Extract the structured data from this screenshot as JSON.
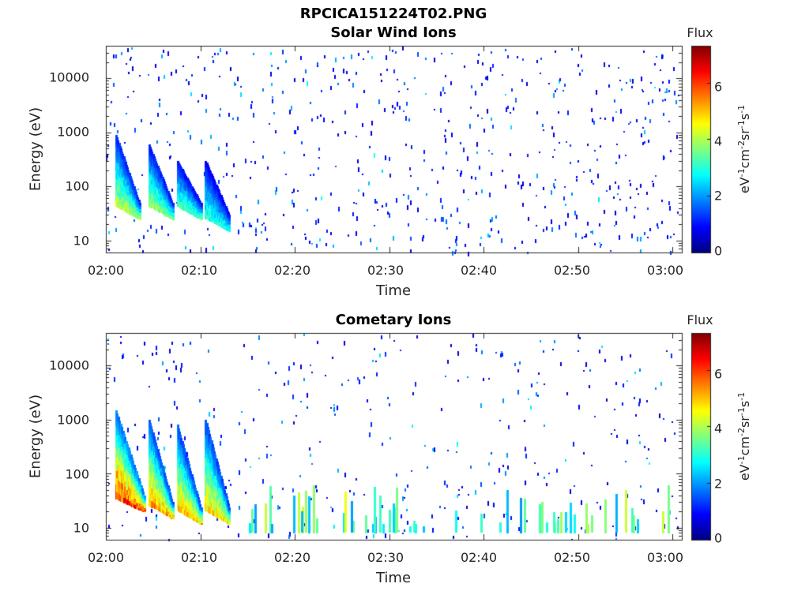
{
  "figure_title": "RPCICA151224T02.PNG",
  "colorbar": {
    "title": "Flux",
    "label_html": "eV<sup>-1</sup>cm<sup>-2</sup>sr<sup>-1</sup>s<sup>-1</sup>",
    "colormap": "jet"
  },
  "chart_data": [
    {
      "type": "heatmap",
      "title": "Solar Wind Ions",
      "xlabel": "Time",
      "ylabel": "Energy (eV)",
      "x_ticks": [
        "02:00",
        "02:10",
        "02:20",
        "02:30",
        "02:40",
        "02:50",
        "03:00"
      ],
      "xlim": [
        "02:00",
        "03:01"
      ],
      "y_ticks": [
        "10",
        "100",
        "1000",
        "10000"
      ],
      "yscale": "log",
      "ylim": [
        6,
        40000
      ],
      "clim": [
        0,
        7.3
      ],
      "colorbar_ticks": [
        "0",
        "2",
        "4",
        "6"
      ],
      "features": [
        {
          "start_min": 1.0,
          "end_min": 3.5,
          "energy_range_eV": [
            25,
            900
          ],
          "peak_flux": 4.6
        },
        {
          "start_min": 4.5,
          "end_min": 7.0,
          "energy_range_eV": [
            25,
            600
          ],
          "peak_flux": 4.3
        },
        {
          "start_min": 7.5,
          "end_min": 10.0,
          "energy_range_eV": [
            25,
            300
          ],
          "peak_flux": 3.8
        },
        {
          "start_min": 10.5,
          "end_min": 13.0,
          "energy_range_eV": [
            15,
            300
          ],
          "peak_flux": 3.5
        }
      ]
    },
    {
      "type": "heatmap",
      "title": "Cometary Ions",
      "xlabel": "Time",
      "ylabel": "Energy (eV)",
      "x_ticks": [
        "02:00",
        "02:10",
        "02:20",
        "02:30",
        "02:40",
        "02:50",
        "03:00"
      ],
      "xlim": [
        "02:00",
        "03:01"
      ],
      "y_ticks": [
        "10",
        "100",
        "1000",
        "10000"
      ],
      "yscale": "log",
      "ylim": [
        6,
        40000
      ],
      "clim": [
        0,
        7.3
      ],
      "colorbar_ticks": [
        "0",
        "2",
        "4",
        "6"
      ],
      "features": [
        {
          "start_min": 1.0,
          "end_min": 4.0,
          "energy_range_eV": [
            20,
            1500
          ],
          "peak_flux": 6.8
        },
        {
          "start_min": 4.5,
          "end_min": 7.0,
          "energy_range_eV": [
            15,
            1000
          ],
          "peak_flux": 6.0
        },
        {
          "start_min": 7.5,
          "end_min": 10.0,
          "energy_range_eV": [
            12,
            800
          ],
          "peak_flux": 5.6
        },
        {
          "start_min": 10.5,
          "end_min": 13.0,
          "energy_range_eV": [
            12,
            1000
          ],
          "peak_flux": 5.4
        }
      ]
    }
  ]
}
